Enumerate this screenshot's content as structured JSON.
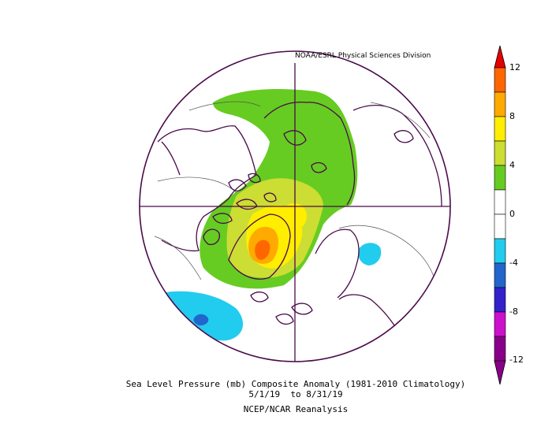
{
  "credit": "NOAA/ESRL Physical Sciences Division",
  "caption": {
    "line1": "Sea Level Pressure (mb) Composite Anomaly (1981-2010 Climatology)",
    "line2": "5/1/19  to 8/31/19",
    "line3": "NCEP/NCAR Reanalysis"
  },
  "colorbar": {
    "ticks": [
      "12",
      "8",
      "4",
      "0",
      "-4",
      "-8",
      "-12"
    ],
    "colors": {
      "c_top": "#e60000",
      "c_10": "#ff6600",
      "c_8": "#ffaa00",
      "c_6": "#ffee00",
      "c_4": "#ccdd33",
      "c_2": "#66cc22",
      "c_0": "#ffffff",
      "c_m2": "#ffffff",
      "c_m4": "#22ccee",
      "c_m6": "#2266cc",
      "c_m8": "#3322cc",
      "c_m10": "#cc11cc",
      "c_bot": "#880088"
    }
  },
  "map_colors": {
    "coast": "#4a0a4a",
    "green": "#66cc22",
    "yellowgreen": "#ccdd33",
    "yellow": "#ffee00",
    "orange": "#ffaa00",
    "darkorange": "#ff6600",
    "cyan": "#22ccee",
    "blue": "#2266cc"
  }
}
